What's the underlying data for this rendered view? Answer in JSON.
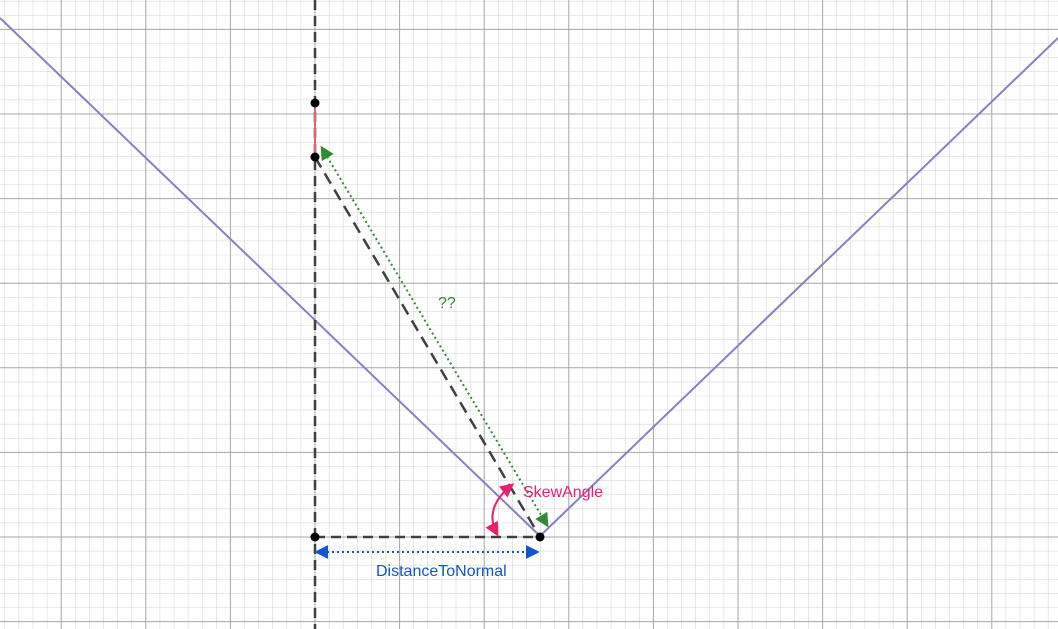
{
  "labels": {
    "unknown": "??",
    "skew_angle": "SkewAngle",
    "distance_to_normal": "DistanceToNormal"
  },
  "colors": {
    "background": "#ffffff",
    "grid_minor": "#d9d9d9",
    "grid_major": "#a6a6a6",
    "v_lines": "#8e7cc3",
    "dashed_construction": "#404040",
    "short_segment": "#e06666",
    "unknown_arrow": "#2e8b2e",
    "skew_angle": "#e8206e",
    "distance_to_normal": "#1155cc",
    "points": "#000000"
  }
}
